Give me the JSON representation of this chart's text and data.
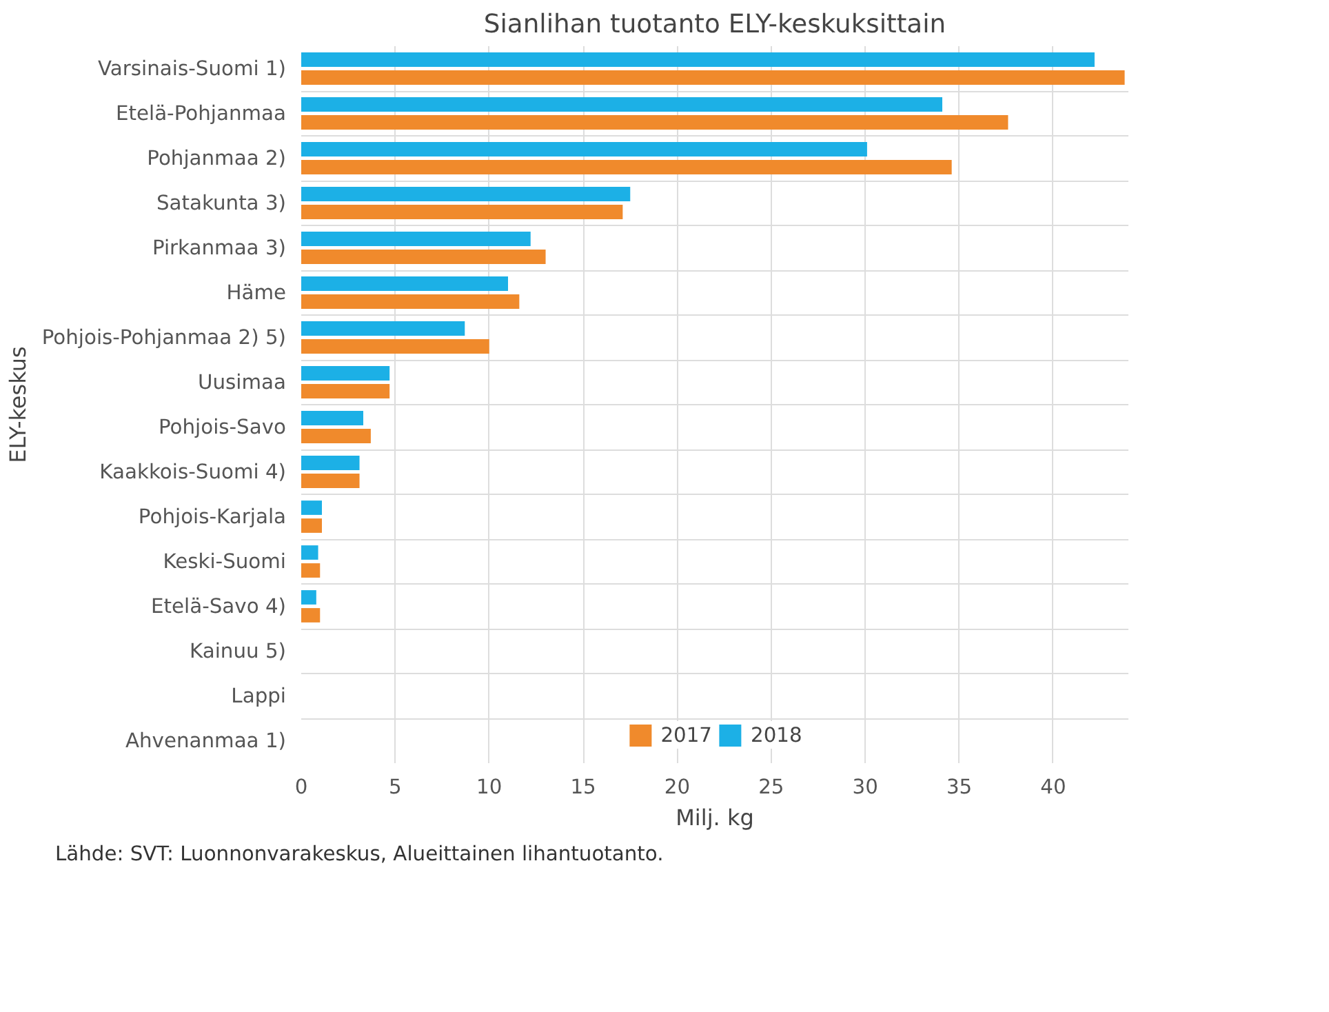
{
  "chart_data": {
    "type": "bar",
    "orientation": "horizontal",
    "title": "Sianlihan tuotanto ELY-keskuksittain",
    "xlabel": "Milj. kg",
    "ylabel": "ELY-keskus",
    "categories": [
      "Varsinais-Suomi 1)",
      "Etelä-Pohjanmaa",
      "Pohjanmaa 2)",
      "Satakunta 3)",
      "Pirkanmaa 3)",
      "Häme",
      "Pohjois-Pohjanmaa 2) 5)",
      "Uusimaa",
      "Pohjois-Savo",
      "Kaakkois-Suomi 4)",
      "Pohjois-Karjala",
      "Keski-Suomi",
      "Etelä-Savo 4)",
      "Kainuu 5)",
      "Lappi",
      "Ahvenanmaa 1)"
    ],
    "series": [
      {
        "name": "2017",
        "color": "#f08a2c",
        "values": [
          43.8,
          37.6,
          34.6,
          17.1,
          13.0,
          11.6,
          10.0,
          4.7,
          3.7,
          3.1,
          1.1,
          1.0,
          1.0,
          null,
          null,
          null
        ]
      },
      {
        "name": "2018",
        "color": "#1cb0e6",
        "values": [
          42.2,
          34.1,
          30.1,
          17.5,
          12.2,
          11.0,
          8.7,
          4.7,
          3.3,
          3.1,
          1.1,
          0.9,
          0.8,
          null,
          null,
          null
        ]
      }
    ],
    "xlim": [
      0,
      44
    ],
    "xticks": [
      0,
      5,
      10,
      15,
      20,
      25,
      30,
      35,
      40
    ],
    "grid": true,
    "legend": "bottom",
    "annotations": [
      "Lähde: SVT: Luonnonvarakeskus, Alueittainen lihantuotanto."
    ]
  }
}
